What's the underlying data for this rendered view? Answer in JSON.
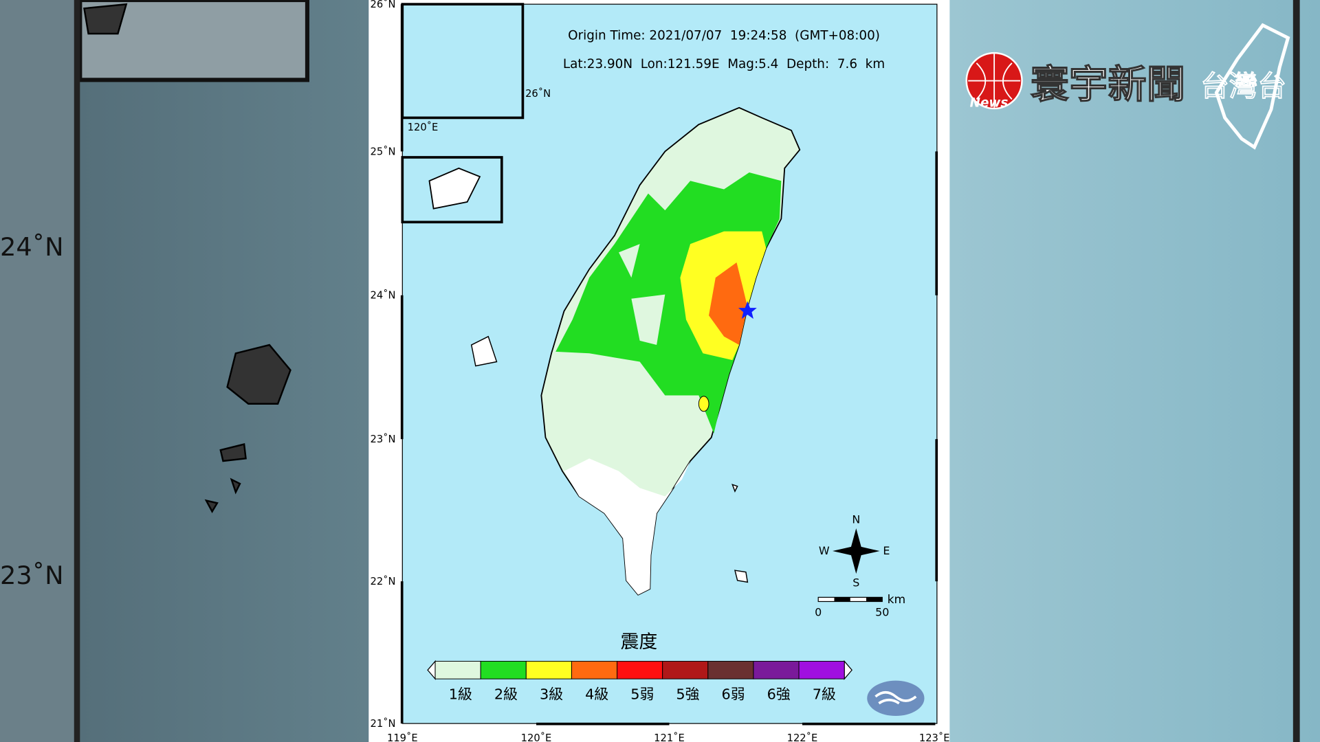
{
  "header": {
    "origin_time": "Origin Time: 2021/07/07  19:24:58  (GMT+08:00)",
    "location": "Lat:23.90N  Lon:121.59E  Mag:5.4  Depth:  7.6  km"
  },
  "map": {
    "lat_labels": [
      "26˚N",
      "25˚N",
      "24˚N",
      "23˚N",
      "22˚N",
      "21˚N"
    ],
    "lon_labels": [
      "119˚E",
      "120˚E",
      "121˚E",
      "122˚E",
      "123˚E"
    ],
    "inset_labels": [
      "26˚N",
      "120˚E"
    ],
    "compass": {
      "n": "N",
      "e": "E",
      "s": "S",
      "w": "W"
    },
    "scale": {
      "unit": "km",
      "start": "0",
      "end": "50"
    }
  },
  "legend": {
    "title": "震度",
    "levels": [
      {
        "label": "1級",
        "color": "#dff7df"
      },
      {
        "label": "2級",
        "color": "#22dd22"
      },
      {
        "label": "3級",
        "color": "#ffff22"
      },
      {
        "label": "4級",
        "color": "#ff6a10"
      },
      {
        "label": "5弱",
        "color": "#ff1010"
      },
      {
        "label": "5強",
        "color": "#b01818"
      },
      {
        "label": "6弱",
        "color": "#6a3030"
      },
      {
        "label": "6強",
        "color": "#7a1a9a"
      },
      {
        "label": "7級",
        "color": "#a010e0"
      }
    ]
  },
  "background": {
    "lat_labels": [
      "24˚N",
      "23˚N"
    ]
  },
  "logo": {
    "news": "News",
    "name": "寰宇新聞",
    "channel": "台灣台"
  }
}
